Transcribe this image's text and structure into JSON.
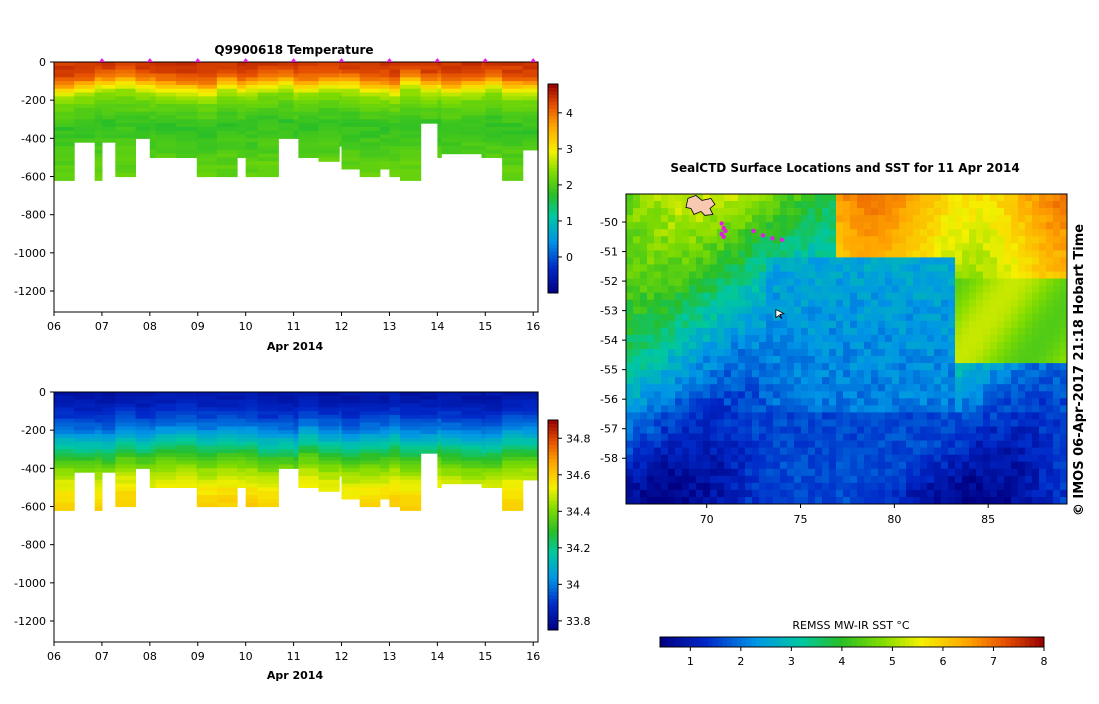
{
  "chart_data": [
    {
      "type": "heatmap",
      "title": "Q9900618  Temperature",
      "xlabel": "Apr 2014",
      "x_ticks": [
        "06",
        "07",
        "08",
        "09",
        "10",
        "11",
        "12",
        "13",
        "14",
        "15",
        "16"
      ],
      "xlim": [
        6,
        16.1
      ],
      "y_ticks": [
        "0",
        "-200",
        "-400",
        "-600",
        "-800",
        "-1000",
        "-1200"
      ],
      "ylim": [
        -1310,
        0
      ],
      "colorbar": {
        "ticks": [
          "0",
          "1",
          "2",
          "3",
          "4"
        ],
        "range": [
          -1,
          4.8
        ]
      },
      "profile_days": [
        6.0,
        6.42,
        6.85,
        7.0,
        7.28,
        7.7,
        8.0,
        8.12,
        8.55,
        8.98,
        9.0,
        9.4,
        9.82,
        10.0,
        10.25,
        10.68,
        11.0,
        11.1,
        11.52,
        11.95,
        12.0,
        12.38,
        12.8,
        13.0,
        13.22,
        13.65,
        14.0,
        14.08,
        14.5,
        14.92,
        15.0,
        15.35,
        15.78
      ],
      "profile_depths": [
        610,
        410,
        620,
        420,
        600,
        400,
        500,
        500,
        500,
        600,
        600,
        600,
        500,
        600,
        600,
        400,
        400,
        500,
        510,
        440,
        560,
        600,
        560,
        600,
        610,
        320,
        500,
        480,
        480,
        500,
        500,
        610,
        460
      ],
      "surface_marker_days": [
        7,
        8,
        9,
        10,
        11,
        12,
        13,
        14,
        15,
        16
      ],
      "depth_profile": {
        "depths": [
          0,
          40,
          80,
          120,
          160,
          200,
          260,
          320,
          400,
          520,
          700
        ],
        "values": [
          4.4,
          4.3,
          3.9,
          3.1,
          2.5,
          2.2,
          2.0,
          1.8,
          1.9,
          2.1,
          2.2
        ]
      }
    },
    {
      "type": "heatmap",
      "title": "",
      "xlabel": "Apr 2014",
      "x_ticks": [
        "06",
        "07",
        "08",
        "09",
        "10",
        "11",
        "12",
        "13",
        "14",
        "15",
        "16"
      ],
      "xlim": [
        6,
        16.1
      ],
      "y_ticks": [
        "0",
        "-200",
        "-400",
        "-600",
        "-800",
        "-1000",
        "-1200"
      ],
      "ylim": [
        -1310,
        0
      ],
      "colorbar": {
        "ticks": [
          "33.8",
          "34",
          "34.2",
          "34.4",
          "34.6",
          "34.8"
        ],
        "range": [
          33.75,
          34.9
        ]
      },
      "depth_profile": {
        "depths": [
          0,
          60,
          120,
          180,
          230,
          280,
          340,
          400,
          460,
          520,
          600
        ],
        "values": [
          33.82,
          33.86,
          33.92,
          34.0,
          34.1,
          34.2,
          34.33,
          34.43,
          34.5,
          34.56,
          34.6
        ]
      }
    },
    {
      "type": "heatmap",
      "title": "SealCTD Surface Locations and SST for 11 Apr 2014",
      "x_ticks": [
        "70",
        "75",
        "80",
        "85"
      ],
      "xlim": [
        65.7,
        89.2
      ],
      "y_ticks": [
        "-50",
        "-51",
        "-52",
        "-53",
        "-54",
        "-55",
        "-56",
        "-57",
        "-58"
      ],
      "ylim": [
        -59.55,
        -49.05
      ],
      "colorbar": {
        "label": "REMSS MW-IR SST °C",
        "ticks": [
          "1",
          "2",
          "3",
          "4",
          "5",
          "6",
          "7",
          "8"
        ],
        "range": [
          0.4,
          8
        ]
      },
      "track_points": [
        [
          70.8,
          -50.05
        ],
        [
          70.9,
          -50.2
        ],
        [
          70.8,
          -50.4
        ],
        [
          70.9,
          -50.5
        ],
        [
          71.0,
          -50.3
        ],
        [
          72.5,
          -50.3
        ],
        [
          73.0,
          -50.45
        ],
        [
          73.5,
          -50.55
        ],
        [
          74.0,
          -50.6
        ]
      ],
      "current_position": [
        73.9,
        -53.1
      ],
      "credit": "© IMOS 06-Apr-2017 21:18 Hobart Time"
    }
  ]
}
